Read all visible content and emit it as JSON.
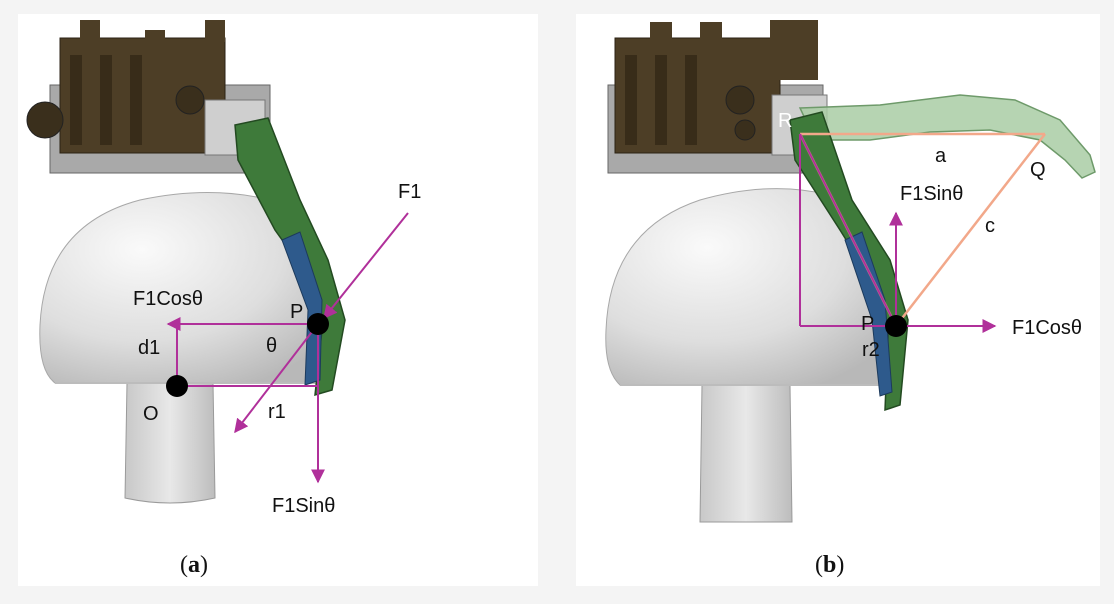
{
  "panel_a": {
    "labels": {
      "f1": "F1",
      "f1cos": "F1Cosθ",
      "f1sin": "F1Sinθ",
      "p": "P",
      "theta": "θ",
      "d1": "d1",
      "r1": "r1",
      "o": "O"
    },
    "caption": {
      "open": "(",
      "letter": "a",
      "close": ")"
    }
  },
  "panel_b": {
    "labels": {
      "r": "R",
      "a": "a",
      "q": "Q",
      "f1sin": "F1Sinθ",
      "c": "c",
      "p": "P",
      "r2": "r2",
      "f1cos": "F1Cosθ"
    },
    "caption": {
      "open": "(",
      "letter": "b",
      "close": ")"
    }
  },
  "colors": {
    "background": "#f4f4f4",
    "panel": "#ffffff",
    "force_arrow": "#b0309a",
    "triangle": "#f2a88a",
    "finger_green": "#3e7a3a",
    "finger_light_green": "#a9cda5",
    "pad_blue": "#2e5a8c",
    "servo_brown": "#4d3e26",
    "mushroom_grey": "#d9d9d9"
  }
}
